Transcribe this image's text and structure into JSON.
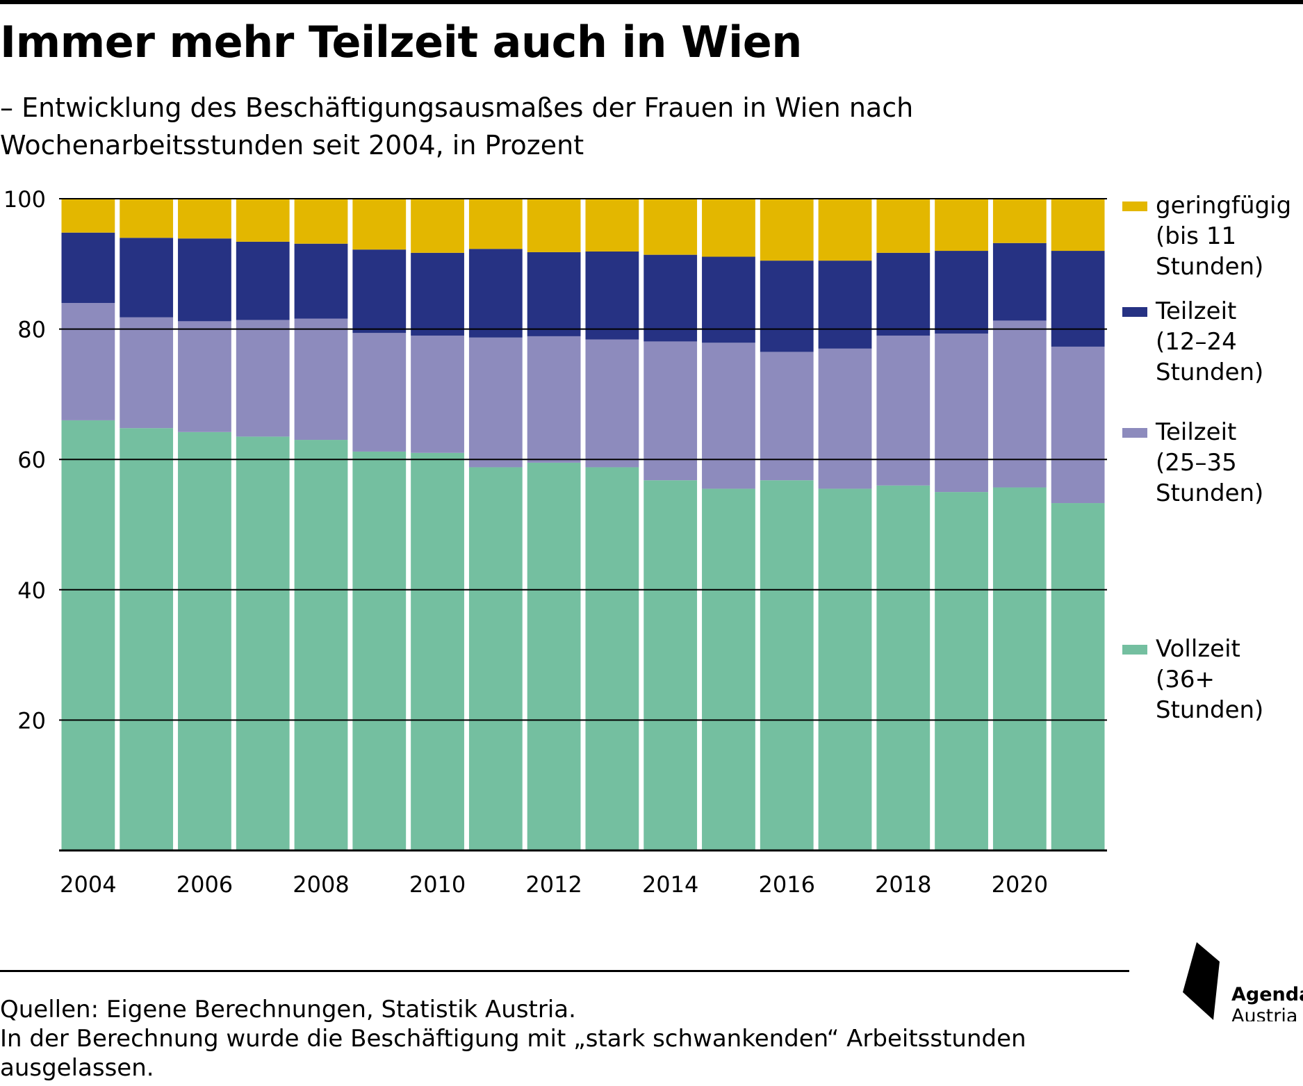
{
  "title": "Immer mehr Teilzeit auch in Wien",
  "subtitle": "– Entwicklung des Beschäftigungsausmaßes der Frauen in Wien nach Wochenarbeitsstunden seit 2004, in Prozent",
  "footer": {
    "sources": "Quellen: Eigene Berechnungen, Statistik Austria.",
    "note": "In der Berechnung wurde die Beschäftigung mit „stark schwankenden“ Arbeitsstunden ausgelassen."
  },
  "logo": {
    "line1": "Agenda",
    "line2": "Austria"
  },
  "colors": {
    "vollzeit": "#74bfa0",
    "teilzeit_25_35": "#8d8bbd",
    "teilzeit_12_24": "#263283",
    "geringfuegig": "#e3b700",
    "gridline": "#000000"
  },
  "chart_data": {
    "type": "bar",
    "stacked": true,
    "x": [
      2004,
      2005,
      2006,
      2007,
      2008,
      2009,
      2010,
      2011,
      2012,
      2013,
      2014,
      2015,
      2016,
      2017,
      2018,
      2019,
      2020,
      2021
    ],
    "x_tick_labels": [
      "2004",
      "2006",
      "2008",
      "2010",
      "2012",
      "2014",
      "2016",
      "2018",
      "2020"
    ],
    "y_ticks": [
      20,
      40,
      60,
      80,
      100
    ],
    "ylim": [
      0,
      100
    ],
    "grid": "horizontal",
    "legend_position": "right",
    "series": [
      {
        "name": "Vollzeit\n(36+\nStunden)",
        "color_key": "vollzeit",
        "values": [
          66.0,
          64.8,
          64.2,
          63.5,
          63.0,
          61.2,
          61.0,
          58.8,
          59.5,
          58.8,
          56.8,
          55.5,
          56.8,
          55.5,
          56.0,
          55.0,
          55.7,
          53.3
        ]
      },
      {
        "name": "Teilzeit\n(25–35\nStunden)",
        "color_key": "teilzeit_25_35",
        "values": [
          18.0,
          17.0,
          17.0,
          17.9,
          18.6,
          18.2,
          18.0,
          19.9,
          19.4,
          19.6,
          21.3,
          22.4,
          19.7,
          21.5,
          23.0,
          24.3,
          25.6,
          24.0
        ]
      },
      {
        "name": "Teilzeit\n(12–24\nStunden)",
        "color_key": "teilzeit_12_24",
        "values": [
          10.8,
          12.2,
          12.7,
          12.0,
          11.5,
          12.8,
          12.7,
          13.6,
          12.9,
          13.5,
          13.3,
          13.2,
          14.0,
          13.5,
          12.7,
          12.7,
          11.9,
          14.7
        ]
      },
      {
        "name": "geringfügig\n(bis 11\nStunden)",
        "color_key": "geringfuegig",
        "values": [
          5.2,
          6.0,
          6.1,
          6.6,
          6.9,
          7.8,
          8.3,
          7.7,
          8.2,
          8.1,
          8.6,
          8.9,
          9.5,
          9.5,
          8.3,
          8.0,
          6.8,
          8.0
        ]
      }
    ]
  }
}
